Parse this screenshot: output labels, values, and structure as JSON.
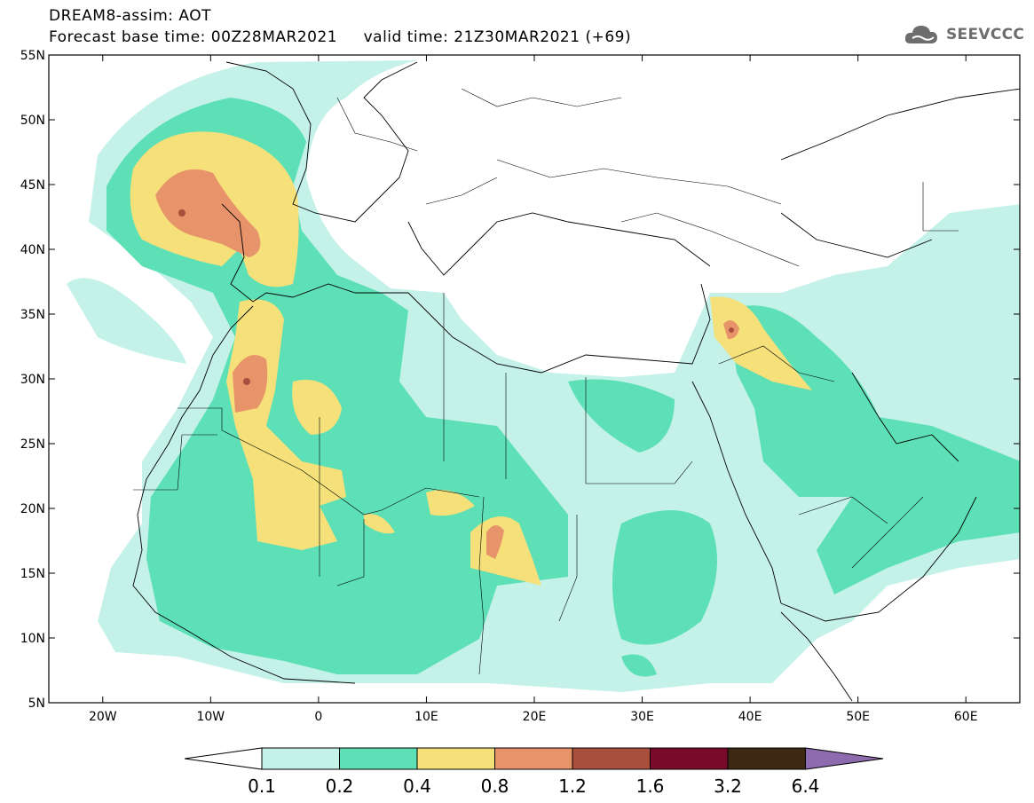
{
  "header": {
    "line1": "DREAM8-assim: AOT",
    "line2": "Forecast base time: 00Z28MAR2021     valid time: 21Z30MAR2021 (+69)"
  },
  "logo": {
    "text": "SEEVCCC",
    "icon": "cloud-icon",
    "color": "#6d6d6d"
  },
  "map": {
    "variable": "AOT",
    "lon_range": [
      -25,
      65
    ],
    "lat_range": [
      5,
      55
    ],
    "lat_ticks": [
      "55N",
      "50N",
      "45N",
      "40N",
      "35N",
      "30N",
      "25N",
      "20N",
      "15N",
      "10N",
      "5N"
    ],
    "lon_ticks": [
      "20W",
      "10W",
      "0",
      "10E",
      "20E",
      "30E",
      "40E",
      "50E",
      "60E"
    ]
  },
  "colorbar": {
    "levels": [
      "0.1",
      "0.2",
      "0.4",
      "0.8",
      "1.2",
      "1.6",
      "3.2",
      "6.4"
    ],
    "colors": [
      "#c4f1e8",
      "#5ee0b6",
      "#f5e07a",
      "#e8946a",
      "#a94f3e",
      "#7a0a2a",
      "#3d2814",
      "#8e6bae"
    ],
    "under_color": "#ffffff"
  }
}
